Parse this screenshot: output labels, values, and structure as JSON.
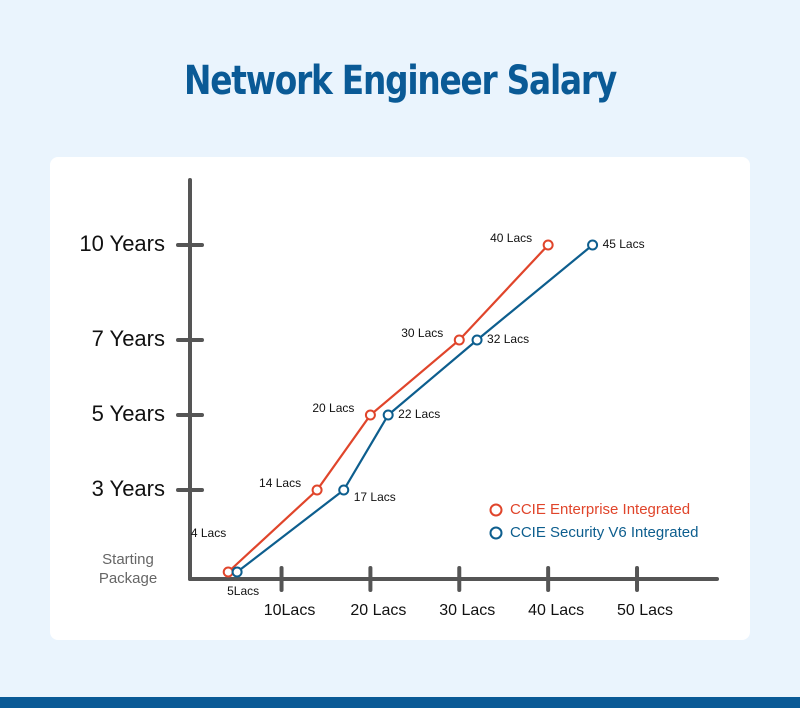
{
  "chart_data": {
    "type": "line",
    "title": "Network Engineer Salary",
    "categories": [
      "Starting Package",
      "3 Years",
      "5 Years",
      "7 Years",
      "10 Years"
    ],
    "series": [
      {
        "name": "CCIE Enterprise Integrated",
        "color": "#e0452b",
        "values": [
          4,
          14,
          20,
          30,
          40
        ],
        "value_labels": [
          "4 Lacs",
          "14 Lacs",
          "20 Lacs",
          "30 Lacs",
          "40 Lacs"
        ]
      },
      {
        "name": "CCIE Security V6 Integrated",
        "color": "#0d5e8e",
        "values": [
          5,
          17,
          22,
          32,
          45
        ],
        "value_labels": [
          "5Lacs",
          "17 Lacs",
          "22 Lacs",
          "32 Lacs",
          "45 Lacs"
        ]
      }
    ],
    "xlim": [
      -0.3,
      59
    ],
    "xticks": [
      {
        "value": 10,
        "label": "10Lacs"
      },
      {
        "value": 20,
        "label": "20 Lacs"
      },
      {
        "value": 30,
        "label": "30 Lacs"
      },
      {
        "value": 40,
        "label": "40 Lacs"
      },
      {
        "value": 50,
        "label": "50 Lacs"
      }
    ],
    "legend": "lower right"
  }
}
